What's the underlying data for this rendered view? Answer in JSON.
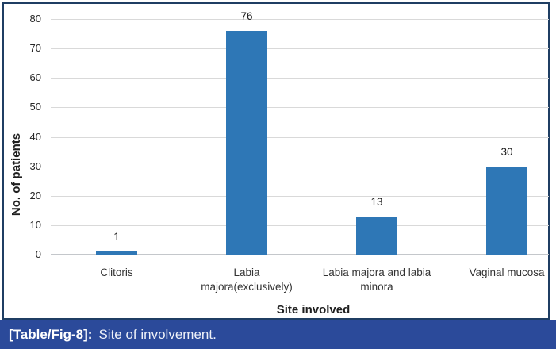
{
  "figure": {
    "caption": {
      "label": "[Table/Fig-8]:",
      "text": "Site of involvement."
    }
  },
  "chart_data": {
    "type": "bar",
    "title": "",
    "categories": [
      "Clitoris",
      "Labia majora(exclusively)",
      "Labia majora and labia minora",
      "Vaginal mucosa"
    ],
    "category_lines": [
      [
        "Clitoris"
      ],
      [
        "Labia",
        "majora(exclusively)"
      ],
      [
        "Labia majora and labia",
        "minora"
      ],
      [
        "Vaginal mucosa"
      ]
    ],
    "values": [
      1,
      76,
      13,
      30
    ],
    "xlabel": "Site involved",
    "ylabel": "No. of patients",
    "ylim": [
      0,
      80
    ],
    "yticks": [
      0,
      10,
      20,
      30,
      40,
      50,
      60,
      70,
      80
    ],
    "grid": true,
    "legend": false,
    "colors": {
      "bar": "#2e77b6",
      "gridline": "#d9d9d9",
      "axis-line": "#c4c7cb",
      "border": "#1f3e63",
      "caption-bg": "#2b4a9a",
      "caption-text": "#ffffff",
      "label-text": "#262626"
    }
  }
}
